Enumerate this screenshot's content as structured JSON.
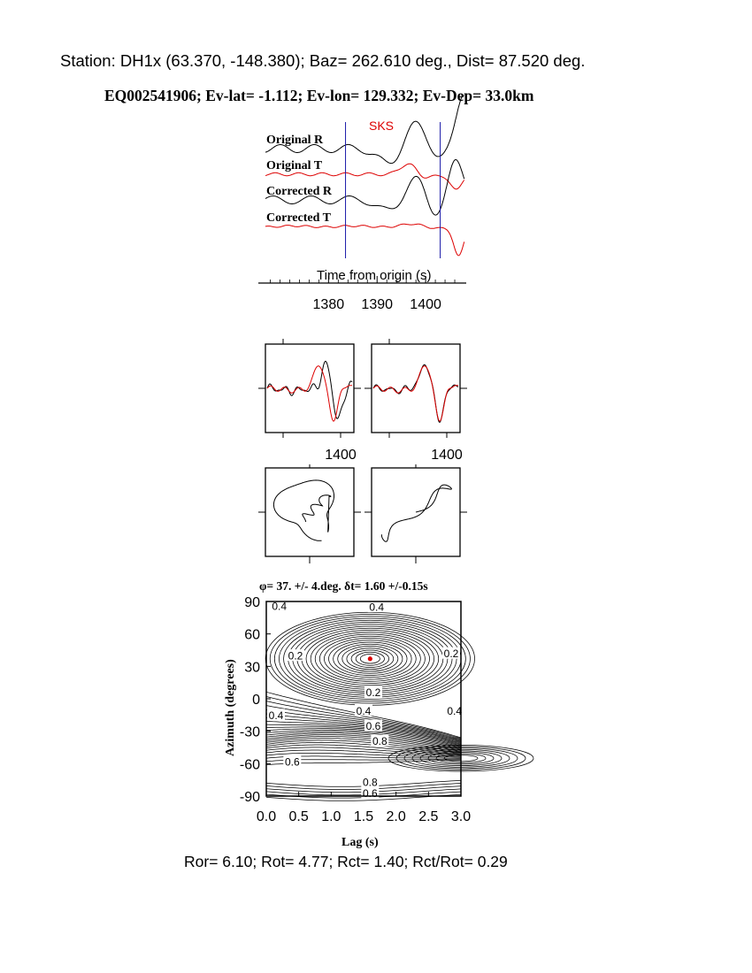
{
  "header": {
    "station_line": "Station: DH1x (63.370, -148.380); Baz=  262.610 deg., Dist=   87.520 deg.",
    "event_line": "EQ002541906; Ev-lat=  -1.112; Ev-lon= 129.332; Ev-Dep= 33.0km"
  },
  "footer": {
    "ratios_line": "Ror= 6.10; Rot= 4.77; Rct= 1.40; Rct/Rot= 0.29"
  },
  "colors": {
    "black_trace": "#000000",
    "red_trace": "#dd0000",
    "window_line": "#1a1aa8"
  },
  "chart_data": [
    {
      "type": "line",
      "panel": "seismograms",
      "phase_label": "SKS",
      "xlabel": "Time from origin (s)",
      "x_ticks": [
        1380,
        1390,
        1400
      ],
      "xlim": [
        1367,
        1408
      ],
      "window_s": [
        1383.5,
        1403.0
      ],
      "series": [
        {
          "name": "Original R",
          "color": "#000000"
        },
        {
          "name": "Original T",
          "color": "#dd0000"
        },
        {
          "name": "Corrected R",
          "color": "#000000"
        },
        {
          "name": "Corrected T",
          "color": "#dd0000"
        }
      ]
    },
    {
      "type": "line",
      "panel": "waveform-overlay-original",
      "x_ticks": [
        1400
      ],
      "series": [
        {
          "color": "#000000"
        },
        {
          "color": "#dd0000"
        }
      ]
    },
    {
      "type": "line",
      "panel": "waveform-overlay-corrected",
      "x_ticks": [
        1400
      ],
      "series": [
        {
          "color": "#000000"
        },
        {
          "color": "#dd0000"
        }
      ]
    },
    {
      "type": "line",
      "panel": "particle-motion-original"
    },
    {
      "type": "line",
      "panel": "particle-motion-corrected"
    },
    {
      "type": "heatmap",
      "panel": "energy-grid",
      "title": "φ= 37. +/- 4.deg.  δt= 1.60 +/-0.15s",
      "xlabel": "Lag (s)",
      "ylabel": "Azimuth (degrees)",
      "xlim": [
        0.0,
        3.0
      ],
      "ylim": [
        -90,
        90
      ],
      "x_ticks": [
        "0.0",
        "0.5",
        "1.0",
        "1.5",
        "2.0",
        "2.5",
        "3.0"
      ],
      "y_ticks": [
        "90",
        "60",
        "30",
        "0",
        "-30",
        "-60",
        "-90"
      ],
      "best_fit": {
        "lag": 1.6,
        "azimuth": 37
      },
      "contour_labels": [
        {
          "text": "0.4",
          "lag": 0.2,
          "azimuth": 86
        },
        {
          "text": "0.4",
          "lag": 1.7,
          "azimuth": 85
        },
        {
          "text": "0.2",
          "lag": 0.45,
          "azimuth": 40
        },
        {
          "text": "0.2",
          "lag": 2.85,
          "azimuth": 42
        },
        {
          "text": "0.2",
          "lag": 1.65,
          "azimuth": 6
        },
        {
          "text": "0.4",
          "lag": 1.5,
          "azimuth": -11
        },
        {
          "text": "0.4",
          "lag": 0.15,
          "azimuth": -15
        },
        {
          "text": "0.4",
          "lag": 2.9,
          "azimuth": -11
        },
        {
          "text": "0.6",
          "lag": 1.65,
          "azimuth": -25
        },
        {
          "text": "0.8",
          "lag": 1.75,
          "azimuth": -39
        },
        {
          "text": "0.6",
          "lag": 0.4,
          "azimuth": -58
        },
        {
          "text": "0.8",
          "lag": 1.6,
          "azimuth": -77
        },
        {
          "text": "0.6",
          "lag": 1.6,
          "azimuth": -87
        }
      ]
    }
  ]
}
